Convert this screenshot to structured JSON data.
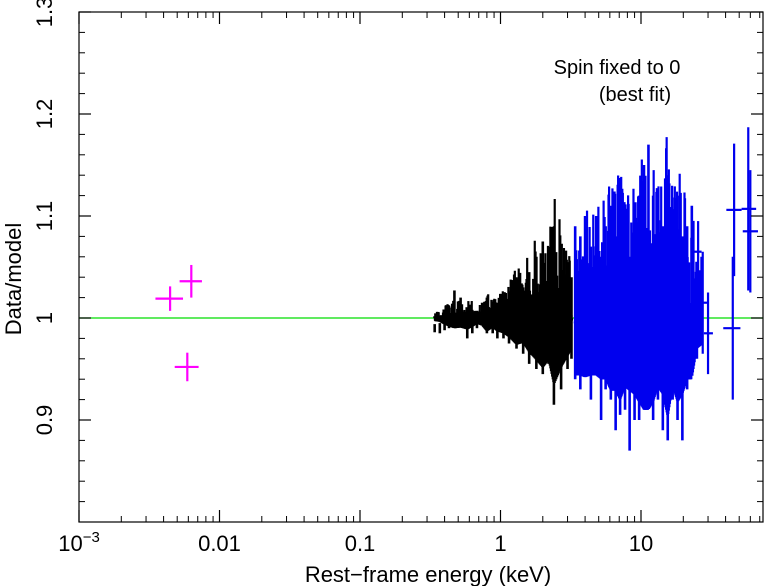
{
  "chart_data": {
    "type": "scatter",
    "title": "",
    "xlabel": "Rest−frame energy (keV)",
    "ylabel": "Data/model",
    "xscale": "log",
    "xlim": [
      0.001,
      80
    ],
    "ylim": [
      0.8,
      1.3
    ],
    "x_ticks": [
      {
        "value": 0.001,
        "base": "10",
        "exp": "−3"
      },
      {
        "value": 0.01,
        "label": "0.01"
      },
      {
        "value": 0.1,
        "label": "0.1"
      },
      {
        "value": 1,
        "label": "1"
      },
      {
        "value": 10,
        "label": "10"
      }
    ],
    "y_ticks": [
      {
        "value": 0.9,
        "label": "0.9"
      },
      {
        "value": 1.0,
        "label": "1"
      },
      {
        "value": 1.1,
        "label": "1.1"
      },
      {
        "value": 1.2,
        "label": "1.2"
      },
      {
        "value": 1.3,
        "label": "1.3"
      }
    ],
    "reference_line": {
      "y": 1.0,
      "color": "#00dd00"
    },
    "annotations": [
      "Spin fixed to 0",
      "(best fit)"
    ],
    "series": [
      {
        "color": "#ff00ff",
        "points": [
          {
            "x": 0.00445,
            "y": 1.019,
            "xerr": [
              0.0035,
              0.0055
            ],
            "yerr": 0.012
          },
          {
            "x": 0.0063,
            "y": 1.036,
            "xerr": [
              0.0052,
              0.0075
            ],
            "yerr": 0.016
          },
          {
            "x": 0.0059,
            "y": 0.952,
            "xerr": [
              0.0048,
              0.0071
            ],
            "yerr": 0.014
          }
        ]
      },
      {
        "color": "#000000",
        "ranges": [
          {
            "x": 0.34,
            "lo": 0.986,
            "hi": 0.994
          },
          {
            "x": 0.37,
            "lo": 0.985,
            "hi": 0.995
          },
          {
            "x": 0.4,
            "lo": 0.988,
            "hi": 1.005
          },
          {
            "x": 0.43,
            "lo": 0.99,
            "hi": 1.012
          },
          {
            "x": 0.47,
            "lo": 1.0,
            "hi": 1.027
          },
          {
            "x": 0.52,
            "lo": 0.995,
            "hi": 1.02
          },
          {
            "x": 0.58,
            "lo": 0.98,
            "hi": 1.01
          },
          {
            "x": 0.63,
            "lo": 0.985,
            "hi": 1.008
          },
          {
            "x": 0.68,
            "lo": 0.99,
            "hi": 1.005
          },
          {
            "x": 0.74,
            "lo": 0.995,
            "hi": 1.015
          },
          {
            "x": 0.8,
            "lo": 0.985,
            "hi": 1.02
          },
          {
            "x": 0.88,
            "lo": 0.985,
            "hi": 1.01
          },
          {
            "x": 0.95,
            "lo": 0.98,
            "hi": 1.015
          },
          {
            "x": 1.05,
            "lo": 0.98,
            "hi": 1.02
          },
          {
            "x": 1.15,
            "lo": 0.975,
            "hi": 1.025
          },
          {
            "x": 1.3,
            "lo": 0.97,
            "hi": 1.04
          },
          {
            "x": 1.45,
            "lo": 0.965,
            "hi": 1.03
          },
          {
            "x": 1.6,
            "lo": 0.955,
            "hi": 1.045
          },
          {
            "x": 1.8,
            "lo": 0.95,
            "hi": 1.06
          },
          {
            "x": 2.0,
            "lo": 0.945,
            "hi": 1.075
          },
          {
            "x": 2.2,
            "lo": 0.955,
            "hi": 1.065
          },
          {
            "x": 2.4,
            "lo": 0.915,
            "hi": 1.09
          },
          {
            "x": 2.7,
            "lo": 0.93,
            "hi": 1.06
          },
          {
            "x": 3.0,
            "lo": 0.95,
            "hi": 1.05
          },
          {
            "x": 3.2,
            "lo": 0.96,
            "hi": 1.04
          }
        ]
      },
      {
        "color": "#0000ee",
        "ranges": [
          {
            "x": 3.4,
            "lo": 0.94,
            "hi": 1.09
          },
          {
            "x": 3.7,
            "lo": 0.93,
            "hi": 1.08
          },
          {
            "x": 4.0,
            "lo": 0.945,
            "hi": 1.1
          },
          {
            "x": 4.4,
            "lo": 0.92,
            "hi": 1.07
          },
          {
            "x": 4.8,
            "lo": 0.95,
            "hi": 1.1
          },
          {
            "x": 5.2,
            "lo": 0.9,
            "hi": 1.06
          },
          {
            "x": 5.6,
            "lo": 0.93,
            "hi": 1.09
          },
          {
            "x": 6.1,
            "lo": 0.92,
            "hi": 1.11
          },
          {
            "x": 6.6,
            "lo": 0.89,
            "hi": 1.08
          },
          {
            "x": 7.1,
            "lo": 0.905,
            "hi": 1.12
          },
          {
            "x": 7.7,
            "lo": 0.91,
            "hi": 1.09
          },
          {
            "x": 8.3,
            "lo": 0.87,
            "hi": 1.06
          },
          {
            "x": 9.0,
            "lo": 0.9,
            "hi": 1.1
          },
          {
            "x": 9.7,
            "lo": 0.9,
            "hi": 1.12
          },
          {
            "x": 10.5,
            "lo": 0.91,
            "hi": 1.15
          },
          {
            "x": 11.3,
            "lo": 0.93,
            "hi": 1.17
          },
          {
            "x": 12.2,
            "lo": 0.9,
            "hi": 1.12
          },
          {
            "x": 13.2,
            "lo": 0.92,
            "hi": 1.1
          },
          {
            "x": 14.3,
            "lo": 0.89,
            "hi": 1.09
          },
          {
            "x": 15.5,
            "lo": 0.88,
            "hi": 1.14
          },
          {
            "x": 16.8,
            "lo": 0.92,
            "hi": 1.1
          },
          {
            "x": 18.2,
            "lo": 0.9,
            "hi": 1.12
          },
          {
            "x": 19.7,
            "lo": 0.88,
            "hi": 1.08
          },
          {
            "x": 21.3,
            "lo": 0.93,
            "hi": 1.09
          },
          {
            "x": 23.0,
            "lo": 0.95,
            "hi": 1.11
          },
          {
            "x": 25.0,
            "lo": 0.96,
            "hi": 1.04
          },
          {
            "x": 27.0,
            "lo": 0.99,
            "hi": 1.06
          }
        ],
        "points": [
          {
            "x": 25.5,
            "y": 1.065,
            "xerr": [
              24.0,
              27.0
            ],
            "yerr": 0.03
          },
          {
            "x": 27.5,
            "y": 1.015,
            "xerr": [
              25.5,
              29.5
            ],
            "yerr": 0.05
          },
          {
            "x": 30.0,
            "y": 0.985,
            "xerr": [
              28.0,
              32.5
            ],
            "yerr": 0.04
          },
          {
            "x": 45.0,
            "y": 0.99,
            "xerr": [
              38.5,
              51.0
            ],
            "yerr": 0.07
          },
          {
            "x": 46.0,
            "y": 1.106,
            "xerr": [
              40.5,
              52.0
            ],
            "yerr": 0.065
          },
          {
            "x": 58.0,
            "y": 1.107,
            "xerr": [
              52.0,
              66.0
            ],
            "yerr": 0.08
          },
          {
            "x": 60.0,
            "y": 1.085,
            "xerr": [
              53.0,
              68.0
            ],
            "yerr": 0.06
          }
        ]
      }
    ]
  }
}
